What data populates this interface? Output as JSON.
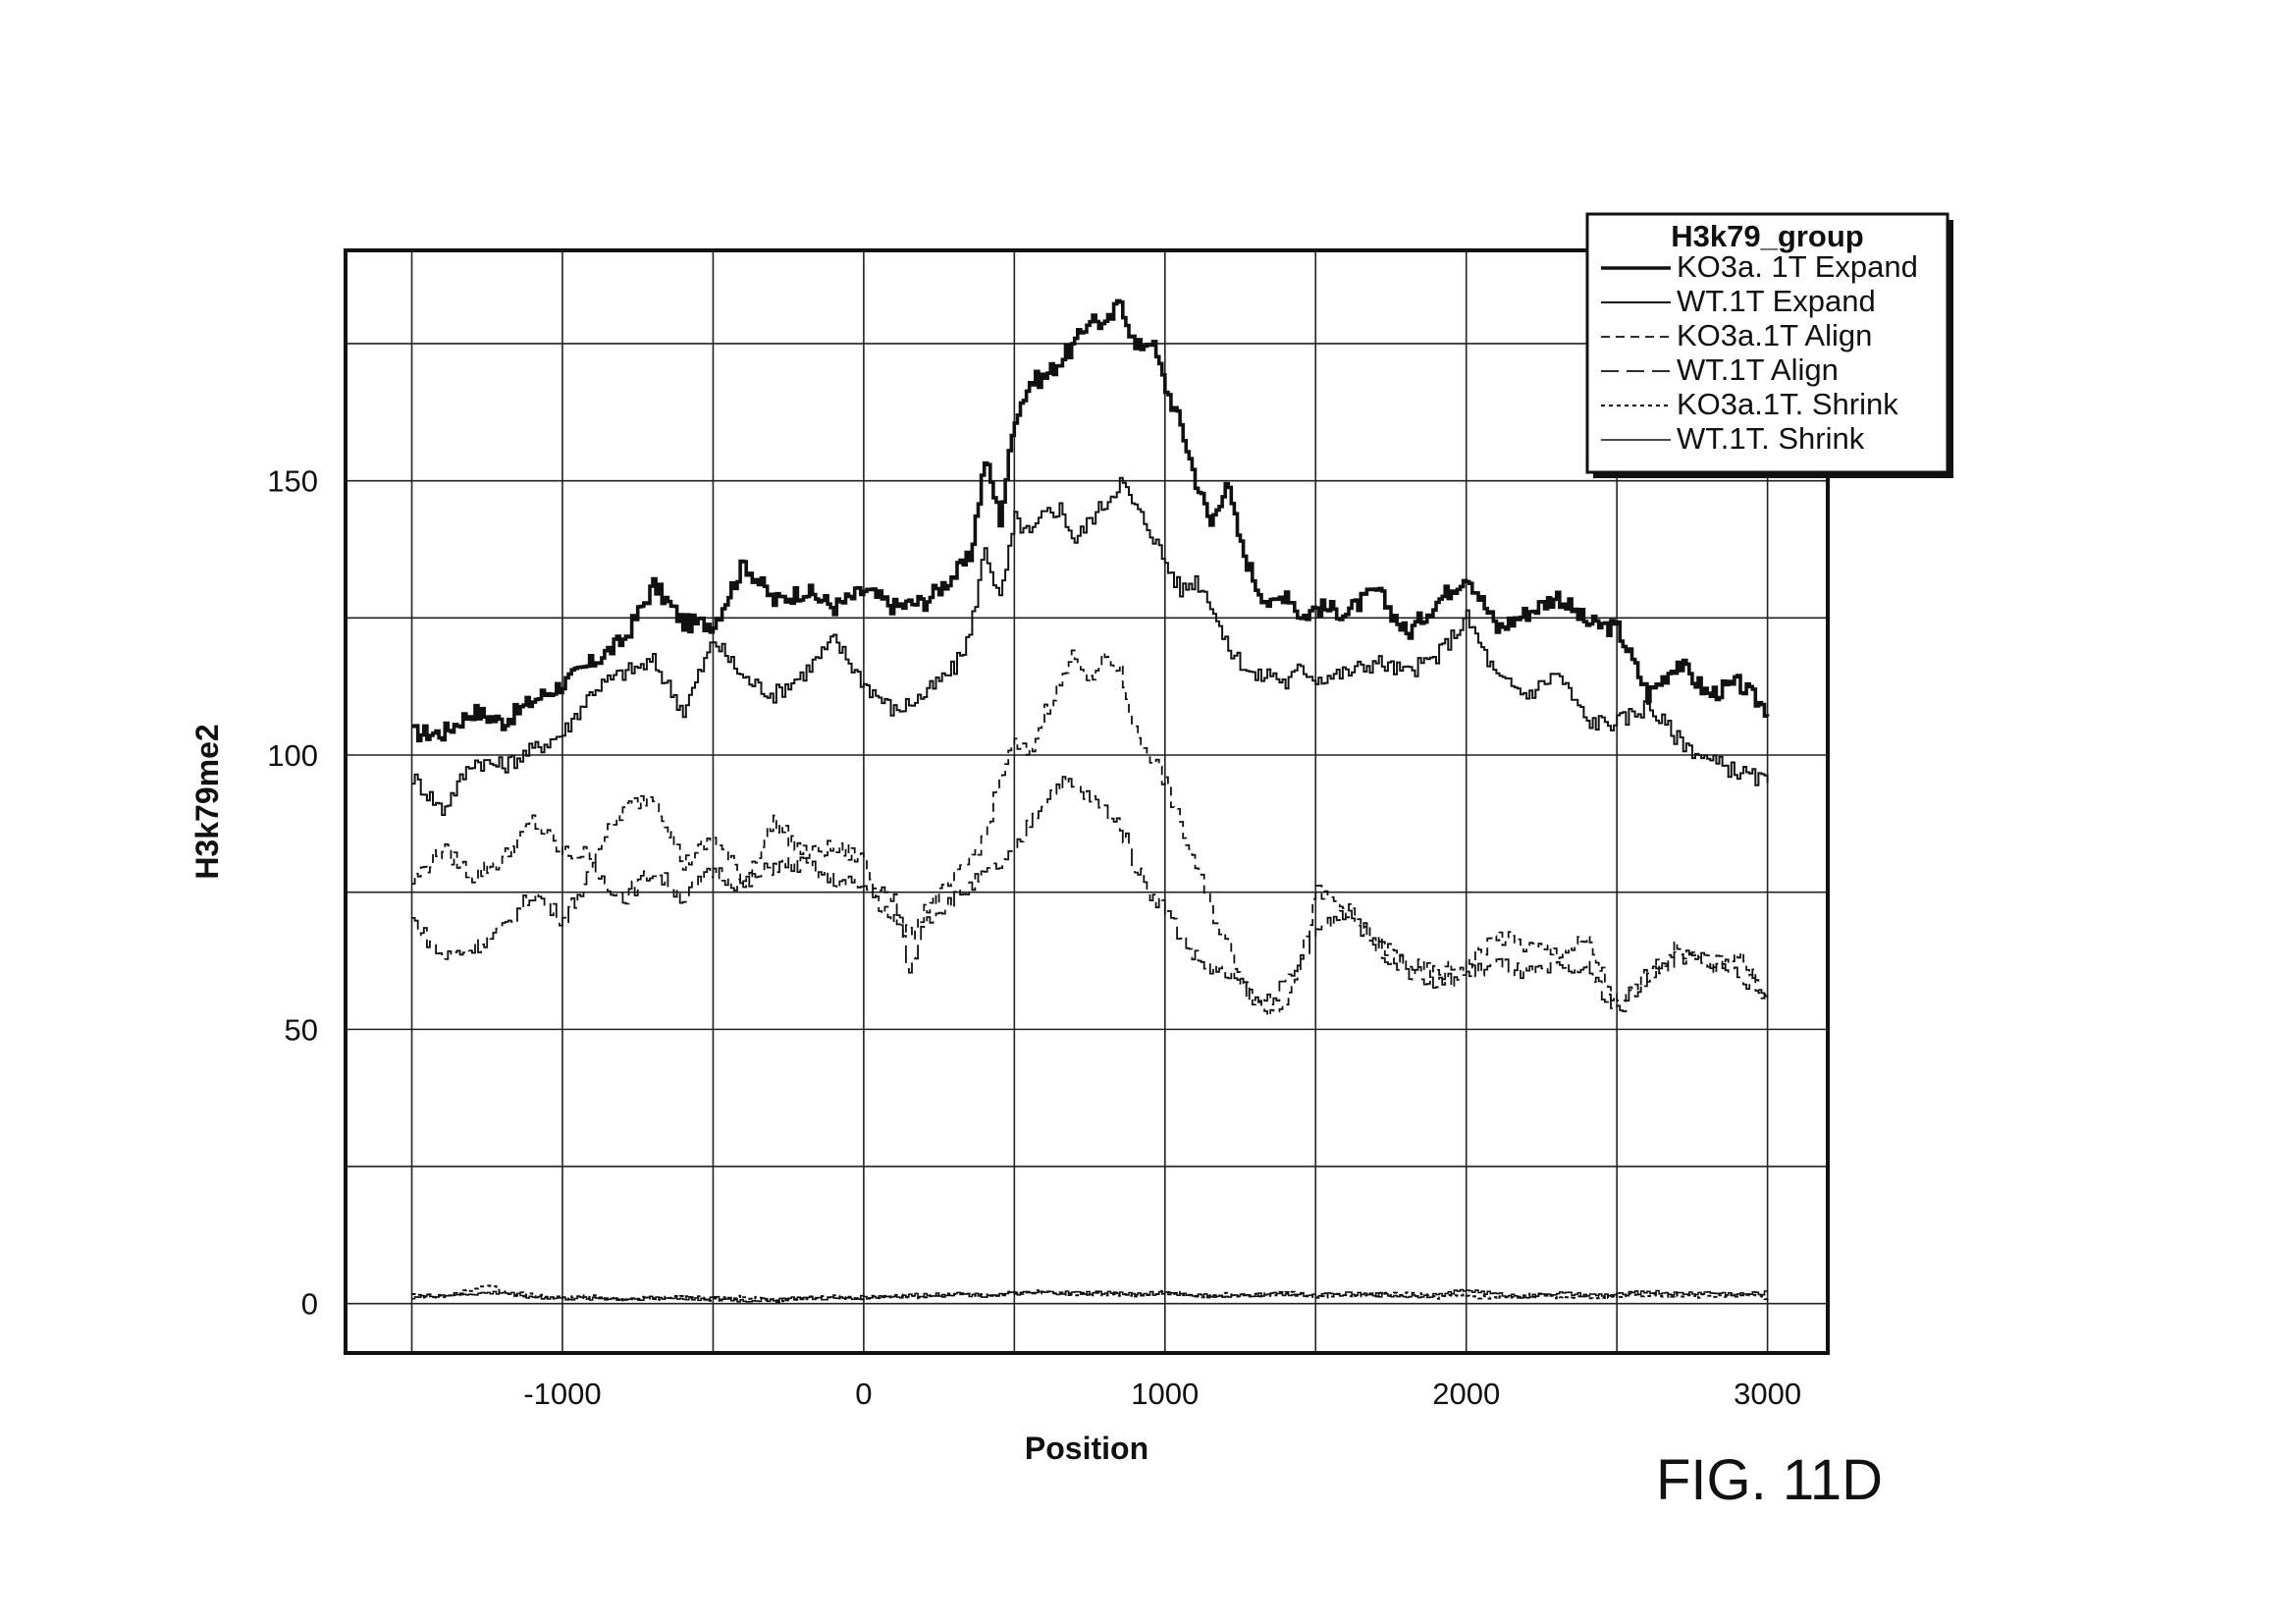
{
  "figure_label": "FIG. 11D",
  "chart_data": {
    "type": "line",
    "xlabel": "Position",
    "ylabel": "H3k79me2",
    "xlim": [
      -1720,
      3200
    ],
    "ylim": [
      -9,
      192
    ],
    "x_ticks": [
      -1000,
      0,
      1000,
      2000,
      3000
    ],
    "y_ticks": [
      0,
      50,
      100,
      150
    ],
    "x_gridlines": [
      -1500,
      -1000,
      -500,
      0,
      500,
      1000,
      1500,
      2000,
      2500,
      3000
    ],
    "y_gridlines": [
      0,
      25,
      50,
      75,
      100,
      125,
      150,
      175
    ],
    "grid": true,
    "legend": {
      "title": "H3k79_group",
      "position": "top-right"
    },
    "series": [
      {
        "name": "KO3a. 1T Expand",
        "style": "thick-solid",
        "x": [
          -1500,
          -1400,
          -1300,
          -1200,
          -1100,
          -1000,
          -900,
          -800,
          -700,
          -600,
          -500,
          -400,
          -300,
          -200,
          -100,
          0,
          100,
          200,
          300,
          350,
          400,
          450,
          500,
          550,
          600,
          650,
          700,
          750,
          800,
          850,
          900,
          950,
          1000,
          1050,
          1100,
          1150,
          1200,
          1250,
          1300,
          1350,
          1400,
          1450,
          1500,
          1600,
          1700,
          1800,
          1900,
          2000,
          2100,
          2200,
          2300,
          2400,
          2500,
          2600,
          2700,
          2800,
          2900,
          3000
        ],
        "values": [
          104,
          104,
          108,
          106,
          110,
          113,
          117,
          121,
          131,
          124,
          124,
          135,
          128,
          130,
          127,
          130,
          127,
          128,
          133,
          136,
          154,
          143,
          162,
          168,
          169,
          172,
          175,
          180,
          178,
          183,
          174,
          176,
          167,
          160,
          150,
          142,
          150,
          138,
          131,
          127,
          130,
          125,
          127,
          126,
          130,
          122,
          128,
          133,
          123,
          126,
          129,
          124,
          123,
          111,
          117,
          111,
          113,
          108
        ]
      },
      {
        "name": "WT.1T Expand",
        "style": "solid",
        "x": [
          -1500,
          -1400,
          -1300,
          -1200,
          -1100,
          -1000,
          -900,
          -800,
          -700,
          -600,
          -500,
          -400,
          -300,
          -200,
          -100,
          0,
          100,
          200,
          300,
          350,
          400,
          450,
          500,
          550,
          600,
          650,
          700,
          750,
          800,
          850,
          900,
          950,
          1000,
          1050,
          1100,
          1150,
          1200,
          1250,
          1300,
          1350,
          1400,
          1450,
          1500,
          1600,
          1700,
          1800,
          1900,
          2000,
          2100,
          2200,
          2300,
          2400,
          2500,
          2600,
          2700,
          2800,
          2900,
          3000
        ],
        "values": [
          96,
          90,
          99,
          98,
          101,
          104,
          112,
          115,
          117,
          108,
          121,
          114,
          111,
          115,
          121,
          113,
          108,
          111,
          116,
          122,
          138,
          128,
          143,
          140,
          144,
          145,
          139,
          143,
          146,
          150,
          145,
          141,
          135,
          130,
          132,
          128,
          120,
          117,
          114,
          115,
          113,
          116,
          114,
          115,
          117,
          115,
          118,
          125,
          114,
          111,
          115,
          106,
          106,
          109,
          103,
          99,
          97,
          95
        ]
      },
      {
        "name": "KO3a.1T Align",
        "style": "short-dash",
        "x": [
          -1500,
          -1400,
          -1300,
          -1200,
          -1100,
          -1000,
          -900,
          -800,
          -700,
          -600,
          -500,
          -400,
          -300,
          -200,
          -100,
          0,
          50,
          100,
          150,
          200,
          300,
          400,
          450,
          500,
          550,
          600,
          650,
          700,
          750,
          800,
          850,
          900,
          950,
          1000,
          1050,
          1100,
          1150,
          1200,
          1250,
          1300,
          1350,
          1400,
          1450,
          1500,
          1600,
          1700,
          1800,
          1900,
          2000,
          2100,
          2200,
          2300,
          2400,
          2500,
          2600,
          2700,
          2800,
          2900,
          3000
        ],
        "values": [
          77,
          83,
          78,
          81,
          88,
          82,
          82,
          90,
          93,
          80,
          85,
          77,
          88,
          82,
          83,
          81,
          73,
          70,
          67,
          72,
          77,
          85,
          96,
          102,
          100,
          108,
          113,
          119,
          113,
          118,
          115,
          104,
          100,
          95,
          87,
          80,
          72,
          66,
          60,
          55,
          53,
          56,
          63,
          75,
          72,
          66,
          62,
          60,
          62,
          67,
          65,
          64,
          66,
          54,
          60,
          65,
          61,
          64,
          55
        ]
      },
      {
        "name": "WT.1T Align",
        "style": "long-dash",
        "x": [
          -1500,
          -1400,
          -1300,
          -1200,
          -1100,
          -1000,
          -900,
          -800,
          -700,
          -600,
          -500,
          -400,
          -300,
          -200,
          -100,
          0,
          50,
          100,
          150,
          200,
          300,
          400,
          450,
          500,
          550,
          600,
          650,
          700,
          750,
          800,
          850,
          900,
          950,
          1000,
          1050,
          1100,
          1150,
          1200,
          1250,
          1300,
          1350,
          1400,
          1450,
          1500,
          1600,
          1700,
          1800,
          1900,
          2000,
          2100,
          2200,
          2300,
          2400,
          2500,
          2600,
          2700,
          2800,
          2900,
          3000
        ],
        "values": [
          70,
          63,
          65,
          68,
          75,
          70,
          79,
          74,
          79,
          74,
          79,
          76,
          80,
          80,
          77,
          76,
          75,
          74,
          60,
          70,
          74,
          78,
          80,
          82,
          88,
          92,
          95,
          94,
          92,
          90,
          87,
          80,
          75,
          72,
          67,
          63,
          61,
          60,
          58,
          55,
          56,
          58,
          62,
          68,
          72,
          65,
          61,
          58,
          60,
          62,
          60,
          61,
          61,
          53,
          60,
          63,
          63,
          60,
          56
        ]
      },
      {
        "name": "KO3a.1T. Shrink",
        "style": "dotted",
        "x": [
          -1500,
          -1400,
          -1300,
          -1250,
          -1200,
          -1100,
          -1000,
          -900,
          -800,
          -700,
          -600,
          -500,
          -400,
          -300,
          -200,
          -100,
          0,
          100,
          200,
          300,
          400,
          500,
          600,
          700,
          800,
          900,
          1000,
          1100,
          1200,
          1300,
          1400,
          1500,
          1600,
          1700,
          1800,
          1900,
          2000,
          2100,
          2200,
          2300,
          2400,
          2500,
          2600,
          2700,
          2800,
          2900,
          3000
        ],
        "values": [
          1.5,
          1.2,
          2.5,
          3.5,
          2.2,
          1.5,
          1.0,
          1.3,
          0.9,
          1.0,
          1.2,
          0.8,
          1.2,
          0.5,
          1.0,
          1.2,
          1.0,
          1.5,
          1.2,
          1.6,
          1.4,
          2.0,
          2.2,
          1.7,
          1.8,
          1.5,
          2.2,
          1.4,
          1.6,
          1.5,
          2.0,
          1.2,
          1.5,
          1.6,
          1.8,
          1.2,
          1.4,
          1.0,
          1.5,
          1.3,
          1.2,
          1.4,
          1.7,
          1.5,
          1.3,
          1.6,
          1.0
        ]
      },
      {
        "name": "WT.1T. Shrink",
        "style": "solid-thin",
        "x": [
          -1500,
          -1400,
          -1300,
          -1200,
          -1100,
          -1000,
          -900,
          -800,
          -700,
          -600,
          -500,
          -400,
          -300,
          -200,
          -100,
          0,
          100,
          200,
          300,
          400,
          500,
          600,
          700,
          800,
          900,
          1000,
          1100,
          1200,
          1300,
          1400,
          1500,
          1600,
          1700,
          1800,
          1900,
          2000,
          2100,
          2200,
          2300,
          2400,
          2500,
          2600,
          2700,
          2800,
          2900,
          3000
        ],
        "values": [
          1.2,
          1.5,
          1.8,
          2.0,
          1.2,
          0.9,
          1.0,
          0.8,
          1.1,
          0.9,
          1.0,
          0.5,
          0.8,
          1.0,
          0.9,
          1.2,
          1.3,
          1.6,
          1.8,
          1.5,
          1.8,
          2.0,
          1.9,
          2.0,
          1.7,
          2.0,
          1.5,
          1.2,
          1.6,
          1.8,
          1.5,
          1.8,
          1.6,
          1.4,
          1.5,
          2.5,
          1.7,
          1.3,
          1.9,
          1.5,
          1.6,
          2.2,
          1.8,
          2.0,
          1.7,
          2.0
        ]
      }
    ]
  }
}
